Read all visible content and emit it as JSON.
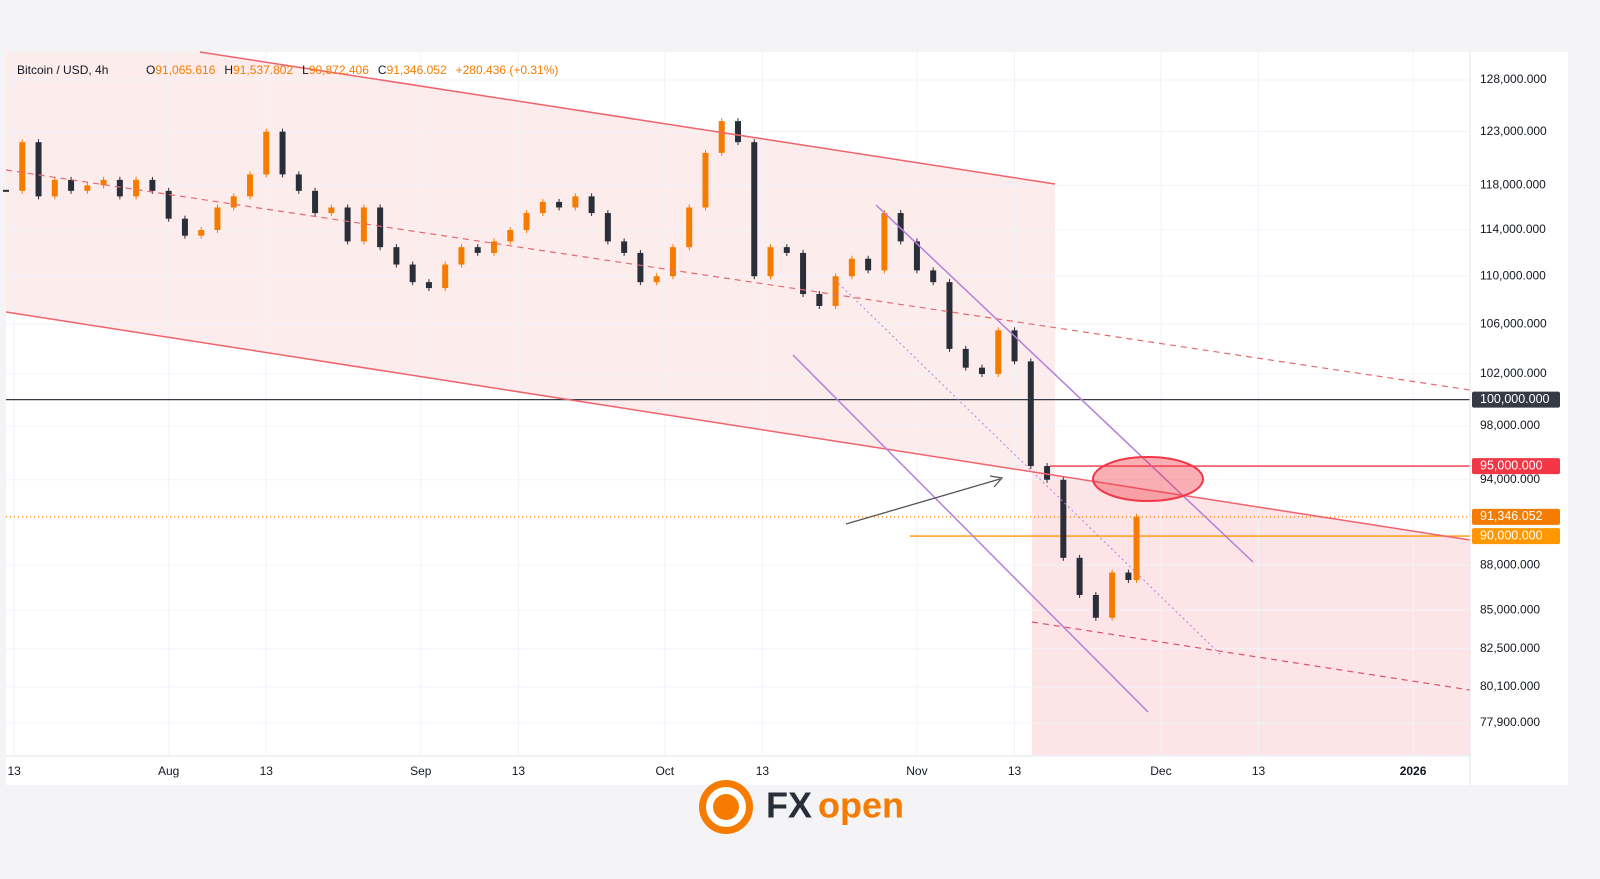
{
  "header": {
    "symbol": "Bitcoin / USD, 4h",
    "ohlc": [
      {
        "key": "O",
        "value": "91,065.616"
      },
      {
        "key": "H",
        "value": "91,537.802"
      },
      {
        "key": "L",
        "value": "90,872.406"
      },
      {
        "key": "C",
        "value": "91,346.052"
      }
    ],
    "change": "+280.436 (+0.31%)"
  },
  "logo": {
    "first": "FX",
    "second": "open"
  },
  "chart_data": {
    "type": "candlestick",
    "log": true,
    "xlim": [
      0,
      180
    ],
    "ylim": [
      76000,
      130800
    ],
    "xticks": [
      {
        "value": 1,
        "label": "13"
      },
      {
        "value": 20,
        "label": "Aug"
      },
      {
        "value": 32,
        "label": "13"
      },
      {
        "value": 51,
        "label": "Sep"
      },
      {
        "value": 63,
        "label": "13"
      },
      {
        "value": 81,
        "label": "Oct"
      },
      {
        "value": 93,
        "label": "13"
      },
      {
        "value": 112,
        "label": "Nov"
      },
      {
        "value": 124,
        "label": "13"
      },
      {
        "value": 142,
        "label": "Dec"
      },
      {
        "value": 154,
        "label": "13"
      },
      {
        "value": 173,
        "label": "2026"
      }
    ],
    "yticks": [
      {
        "value": 128000,
        "label": "128,000.000"
      },
      {
        "value": 123000,
        "label": "123,000.000"
      },
      {
        "value": 118000,
        "label": "118,000.000"
      },
      {
        "value": 114000,
        "label": "114,000.000"
      },
      {
        "value": 110000,
        "label": "110,000.000"
      },
      {
        "value": 106000,
        "label": "106,000.000"
      },
      {
        "value": 102000,
        "label": "102,000.000"
      },
      {
        "value": 98000,
        "label": "98,000.000"
      },
      {
        "value": 94000,
        "label": "94,000.000"
      },
      {
        "value": 88000,
        "label": "88,000.000"
      },
      {
        "value": 85000,
        "label": "85,000.000"
      },
      {
        "value": 82500,
        "label": "82,500.000"
      },
      {
        "value": 80100,
        "label": "80,100.000"
      },
      {
        "value": 77900,
        "label": "77,900.000"
      }
    ],
    "price_tags": [
      {
        "value": 100000,
        "label": "100,000.000",
        "color": "#363a45"
      },
      {
        "value": 95000,
        "label": "95,000.000",
        "color": "#f23645"
      },
      {
        "value": 91346.052,
        "label": "91,346.052",
        "color": "#f57c00"
      },
      {
        "value": 90000,
        "label": "90,000.000",
        "color": "#ff9800"
      }
    ],
    "series": [
      {
        "name": "BTCUSD",
        "up_color": "#f57c00",
        "down_color": "#2a2e39",
        "x": [
          0,
          2,
          4,
          6,
          8,
          10,
          12,
          14,
          16,
          18,
          20,
          22,
          24,
          26,
          28,
          30,
          32,
          34,
          36,
          38,
          40,
          42,
          44,
          46,
          48,
          50,
          52,
          54,
          56,
          58,
          60,
          62,
          64,
          66,
          68,
          70,
          72,
          74,
          76,
          78,
          80,
          82,
          84,
          86,
          88,
          90,
          92,
          94,
          96,
          98,
          100,
          102,
          104,
          106,
          108,
          110,
          112,
          114,
          116,
          118,
          120,
          122,
          124,
          126,
          128,
          130,
          132,
          134,
          136,
          138,
          139
        ],
        "values": [
          117500,
          122000,
          117000,
          118500,
          117500,
          118000,
          118500,
          117000,
          118500,
          117500,
          115000,
          113500,
          114000,
          116000,
          117000,
          119000,
          123000,
          119000,
          117500,
          115500,
          116000,
          113000,
          116000,
          112500,
          111000,
          109500,
          109000,
          111000,
          112500,
          112000,
          113000,
          114000,
          115500,
          116500,
          116000,
          117000,
          115500,
          113000,
          112000,
          109500,
          110000,
          112500,
          116000,
          121000,
          124000,
          122000,
          110000,
          112500,
          112000,
          108500,
          107500,
          110000,
          111500,
          110500,
          115500,
          113000,
          110500,
          109500,
          104000,
          102500,
          102000,
          105500,
          103000,
          95000,
          94000,
          88500,
          86000,
          84500,
          87500,
          87000,
          91346.052
        ]
      }
    ]
  }
}
